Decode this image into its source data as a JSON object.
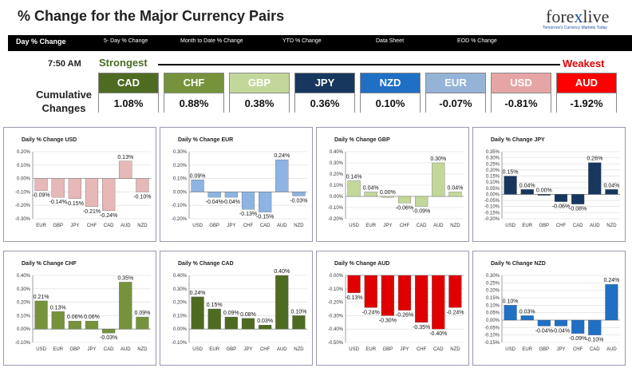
{
  "header": {
    "title": "% Change for the Major Currency Pairs",
    "logo_pre": "fore",
    "logo_x": "x",
    "logo_post": "live",
    "logo_tagline": "Tomorrow's Currency Markets Today"
  },
  "nav": {
    "tabs": [
      {
        "label": "Day % Change",
        "active": true
      },
      {
        "label": "5- Day % Change"
      },
      {
        "label": "Month to Date % Change"
      },
      {
        "label": "YTD % Change"
      },
      {
        "label": "Data Sheet"
      },
      {
        "label": "EOD % Change"
      }
    ]
  },
  "summary": {
    "time": "7:50 AM",
    "strongest_label": "Strongest",
    "weakest_label": "Weakest",
    "cumulative_label_1": "Cumulative",
    "cumulative_label_2": "Changes",
    "currencies": [
      {
        "name": "CAD",
        "value": "1.08%",
        "color": "#4e6b22"
      },
      {
        "name": "CHF",
        "value": "0.88%",
        "color": "#76933c"
      },
      {
        "name": "GBP",
        "value": "0.38%",
        "color": "#c4d79b"
      },
      {
        "name": "JPY",
        "value": "0.36%",
        "color": "#17375e"
      },
      {
        "name": "NZD",
        "value": "0.10%",
        "color": "#1f6fc5"
      },
      {
        "name": "EUR",
        "value": "-0.07%",
        "color": "#95b3d7"
      },
      {
        "name": "USD",
        "value": "-0.81%",
        "color": "#e6a5a5"
      },
      {
        "name": "AUD",
        "value": "-1.92%",
        "color": "#ff0000"
      }
    ]
  },
  "chart_data": [
    {
      "type": "bar",
      "title": "Daily % Change USD",
      "color": "#e6b8b7",
      "categories": [
        "EUR",
        "GBP",
        "JPY",
        "CHF",
        "CAD",
        "AUD",
        "NZD"
      ],
      "values": [
        -0.09,
        -0.14,
        -0.15,
        -0.21,
        -0.24,
        0.13,
        -0.1
      ],
      "labels": [
        "-0.09%",
        "-0.14%",
        "-0.15%",
        "-0.21%",
        "-0.24%",
        "0.13%",
        "-0.10%"
      ],
      "ylim": [
        -0.3,
        0.2
      ],
      "ticks": [
        0.2,
        0.1,
        0.0,
        -0.1,
        -0.2,
        -0.3
      ],
      "tick_labels": [
        "0.20%",
        "0.10%",
        "0.00%",
        "-0.10%",
        "-0.20%",
        "-0.30%"
      ]
    },
    {
      "type": "bar",
      "title": "Daily % Change EUR",
      "color": "#8db4e2",
      "categories": [
        "USD",
        "GBP",
        "JPY",
        "CHF",
        "CAD",
        "AUD",
        "NZD"
      ],
      "values": [
        0.09,
        -0.04,
        -0.04,
        -0.13,
        -0.15,
        0.24,
        -0.03
      ],
      "labels": [
        "0.09%",
        "-0.04%",
        "-0.04%",
        "-0.13%",
        "-0.15%",
        "0.24%",
        "-0.03%"
      ],
      "ylim": [
        -0.2,
        0.3
      ],
      "ticks": [
        0.3,
        0.2,
        0.1,
        0.0,
        -0.1,
        -0.2
      ],
      "tick_labels": [
        "0.30%",
        "0.20%",
        "0.10%",
        "0.00%",
        "-0.10%",
        "-0.20%"
      ]
    },
    {
      "type": "bar",
      "title": "Daily % Change GBP",
      "color": "#c4d79b",
      "categories": [
        "USD",
        "EUR",
        "JPY",
        "CHF",
        "CAD",
        "AUD",
        "NZD"
      ],
      "values": [
        0.14,
        0.04,
        0.0,
        -0.06,
        -0.09,
        0.3,
        0.04
      ],
      "labels": [
        "0.14%",
        "0.04%",
        "0.00%",
        "-0.06%",
        "-0.09%",
        "0.30%",
        "0.04%"
      ],
      "ylim": [
        -0.2,
        0.4
      ],
      "ticks": [
        0.4,
        0.3,
        0.2,
        0.1,
        0.0,
        -0.1,
        -0.2
      ],
      "tick_labels": [
        "0.40%",
        "0.30%",
        "0.20%",
        "0.10%",
        "0.00%",
        "-0.10%",
        "-0.20%"
      ]
    },
    {
      "type": "bar",
      "title": "Daily % Change JPY",
      "color": "#17375e",
      "categories": [
        "USD",
        "EUR",
        "GBP",
        "CHF",
        "CAD",
        "AUD",
        "NZD"
      ],
      "values": [
        0.15,
        0.04,
        0.0,
        -0.06,
        -0.08,
        0.26,
        0.04
      ],
      "labels": [
        "0.15%",
        "0.04%",
        "0.00%",
        "-0.06%",
        "-0.08%",
        "0.26%",
        "0.04%"
      ],
      "ylim": [
        -0.2,
        0.35
      ],
      "ticks": [
        0.35,
        0.3,
        0.25,
        0.2,
        0.15,
        0.1,
        0.05,
        0.0,
        -0.05,
        -0.1,
        -0.15,
        -0.2
      ],
      "tick_labels": [
        "0.35%",
        "0.30%",
        "0.25%",
        "0.20%",
        "0.15%",
        "0.10%",
        "0.05%",
        "0.00%",
        "-0.05%",
        "-0.10%",
        "-0.15%",
        "-0.20%"
      ]
    },
    {
      "type": "bar",
      "title": "Daily % Change CHF",
      "color": "#76933c",
      "categories": [
        "USD",
        "EUR",
        "GBP",
        "JPY",
        "CAD",
        "AUD",
        "NZD"
      ],
      "values": [
        0.21,
        0.13,
        0.06,
        0.06,
        -0.03,
        0.35,
        0.09
      ],
      "labels": [
        "0.21%",
        "0.13%",
        "0.06%",
        "0.06%",
        "-0.03%",
        "0.35%",
        "0.09%"
      ],
      "ylim": [
        -0.1,
        0.4
      ],
      "ticks": [
        0.4,
        0.3,
        0.2,
        0.1,
        0.0,
        -0.1
      ],
      "tick_labels": [
        "0.40%",
        "0.30%",
        "0.20%",
        "0.10%",
        "0.00%",
        "-0.10%"
      ]
    },
    {
      "type": "bar",
      "title": "Daily % Change CAD",
      "color": "#4e6b22",
      "categories": [
        "USD",
        "EUR",
        "GBP",
        "JPY",
        "CHF",
        "AUD",
        "NZD"
      ],
      "values": [
        0.24,
        0.15,
        0.09,
        0.08,
        0.03,
        0.4,
        0.1
      ],
      "labels": [
        "0.24%",
        "0.15%",
        "0.09%",
        "0.08%",
        "0.03%",
        "0.40%",
        "0.10%"
      ],
      "ylim": [
        -0.1,
        0.4
      ],
      "ticks": [
        0.4,
        0.3,
        0.2,
        0.1,
        0.0,
        -0.1
      ],
      "tick_labels": [
        "0.40%",
        "0.30%",
        "0.20%",
        "0.10%",
        "0.00%",
        "-0.10%"
      ]
    },
    {
      "type": "bar",
      "title": "Daily % Change AUD",
      "color": "#e00000",
      "categories": [
        "USD",
        "EUR",
        "GBP",
        "JPY",
        "CHF",
        "CAD",
        "NZD"
      ],
      "values": [
        -0.13,
        -0.24,
        -0.3,
        -0.26,
        -0.35,
        -0.4,
        -0.24
      ],
      "labels": [
        "-0.13%",
        "-0.24%",
        "-0.30%",
        "-0.26%",
        "-0.35%",
        "-0.40%",
        "-0.24%"
      ],
      "ylim": [
        -0.5,
        0.0
      ],
      "ticks": [
        0.0,
        -0.1,
        -0.2,
        -0.3,
        -0.4,
        -0.5
      ],
      "tick_labels": [
        "0.00%",
        "-0.10%",
        "-0.20%",
        "-0.30%",
        "-0.40%",
        "-0.50%"
      ]
    },
    {
      "type": "bar",
      "title": "Daily % Change NZD",
      "color": "#1f6fc5",
      "categories": [
        "USD",
        "EUR",
        "GBP",
        "JPY",
        "CHF",
        "CAD",
        "AUD"
      ],
      "values": [
        0.1,
        0.03,
        -0.04,
        -0.04,
        -0.09,
        -0.1,
        0.24
      ],
      "labels": [
        "0.10%",
        "0.03%",
        "-0.04%",
        "-0.04%",
        "-0.09%",
        "-0.10%",
        "0.24%"
      ],
      "ylim": [
        -0.15,
        0.3
      ],
      "ticks": [
        0.3,
        0.25,
        0.2,
        0.15,
        0.1,
        0.05,
        0.0,
        -0.05,
        -0.1,
        -0.15
      ],
      "tick_labels": [
        "0.30%",
        "0.25%",
        "0.20%",
        "0.15%",
        "0.10%",
        "0.05%",
        "0.00%",
        "-0.05%",
        "-0.10%",
        "-0.15%"
      ]
    }
  ]
}
